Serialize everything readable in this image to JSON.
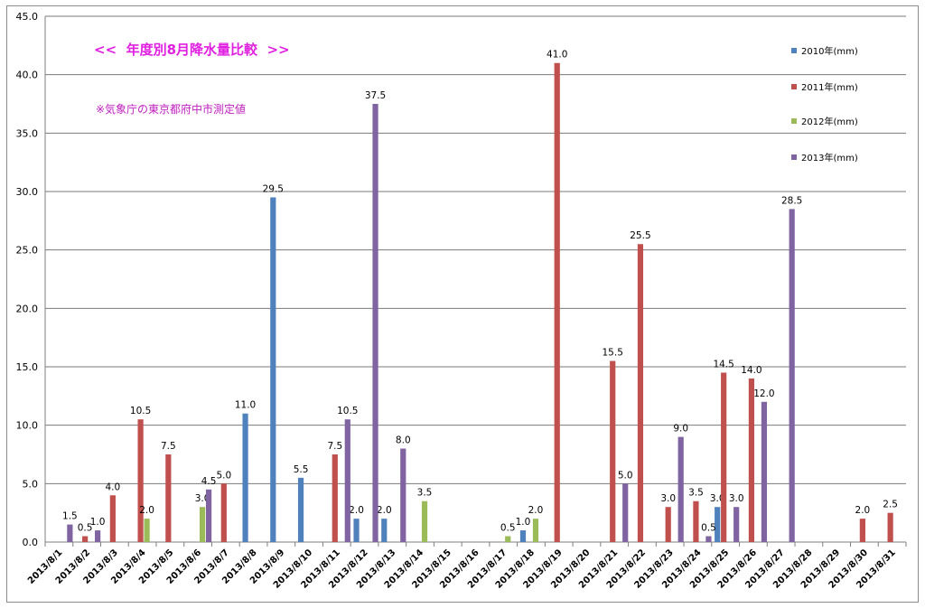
{
  "chart_data": {
    "type": "bar",
    "title": "<<  年度別8月降水量比較  >>",
    "subtitle": "※気象庁の東京都府中市測定値",
    "xlabel": "",
    "ylabel": "",
    "ylim": [
      0,
      45
    ],
    "yticks": [
      "0.0",
      "5.0",
      "10.0",
      "15.0",
      "20.0",
      "25.0",
      "30.0",
      "35.0",
      "40.0",
      "45.0"
    ],
    "grid": true,
    "legend_position": "top-right",
    "categories": [
      "2013/8/1",
      "2013/8/2",
      "2013/8/3",
      "2013/8/4",
      "2013/8/5",
      "2013/8/6",
      "2013/8/7",
      "2013/8/8",
      "2013/8/9",
      "2013/8/10",
      "2013/8/11",
      "2013/8/12",
      "2013/8/13",
      "2013/8/14",
      "2013/8/15",
      "2013/8/16",
      "2013/8/17",
      "2013/8/18",
      "2013/8/19",
      "2013/8/20",
      "2013/8/21",
      "2013/8/22",
      "2013/8/23",
      "2013/8/24",
      "2013/8/25",
      "2013/8/26",
      "2013/8/27",
      "2013/8/28",
      "2013/8/29",
      "2013/8/30",
      "2013/8/31"
    ],
    "series": [
      {
        "name": "2010年(mm)",
        "color": "#4f81bd",
        "values": [
          null,
          null,
          null,
          null,
          null,
          null,
          null,
          11.0,
          29.5,
          5.5,
          null,
          2.0,
          2.0,
          null,
          null,
          null,
          null,
          1.0,
          null,
          null,
          null,
          null,
          null,
          null,
          3.0,
          null,
          null,
          null,
          null,
          null,
          null
        ],
        "labels": [
          null,
          null,
          null,
          null,
          null,
          null,
          null,
          "11.0",
          "29.5",
          "5.5",
          null,
          "2.0",
          "2.0",
          null,
          null,
          null,
          null,
          "1.0",
          null,
          null,
          null,
          null,
          null,
          null,
          "3.0",
          null,
          null,
          null,
          null,
          null,
          null
        ]
      },
      {
        "name": "2011年(mm)",
        "color": "#c0504d",
        "values": [
          null,
          0.5,
          4.0,
          10.5,
          7.5,
          null,
          5.0,
          null,
          null,
          null,
          7.5,
          null,
          null,
          null,
          null,
          null,
          null,
          null,
          41.0,
          null,
          15.5,
          25.5,
          3.0,
          3.5,
          14.5,
          14.0,
          null,
          null,
          null,
          2.0,
          2.5
        ],
        "labels": [
          null,
          "0.5",
          "4.0",
          "10.5",
          "7.5",
          null,
          "5.0",
          null,
          null,
          null,
          "7.5",
          null,
          null,
          null,
          null,
          null,
          null,
          null,
          "41.0",
          null,
          "15.5",
          "25.5",
          "3.0",
          "3.5",
          "14.5",
          "14.0",
          null,
          null,
          null,
          "2.0",
          "2.5"
        ]
      },
      {
        "name": "2012年(mm)",
        "color": "#9bbb59",
        "values": [
          null,
          null,
          null,
          2.0,
          null,
          3.0,
          null,
          null,
          null,
          null,
          null,
          null,
          null,
          3.5,
          null,
          null,
          0.5,
          2.0,
          null,
          null,
          null,
          null,
          null,
          null,
          null,
          null,
          null,
          null,
          null,
          null,
          null
        ],
        "labels": [
          null,
          null,
          null,
          "2.0",
          null,
          "3.0",
          null,
          null,
          null,
          null,
          null,
          null,
          null,
          "3.5",
          null,
          null,
          "0.5",
          "2.0",
          null,
          null,
          null,
          null,
          null,
          null,
          null,
          null,
          null,
          null,
          null,
          null,
          null
        ]
      },
      {
        "name": "2013年(mm)",
        "color": "#8064a2",
        "values": [
          1.5,
          1.0,
          null,
          null,
          null,
          4.5,
          null,
          null,
          null,
          null,
          10.5,
          37.5,
          8.0,
          null,
          null,
          null,
          null,
          null,
          null,
          null,
          5.0,
          null,
          9.0,
          0.5,
          3.0,
          12.0,
          28.5,
          null,
          null,
          null,
          null
        ],
        "labels": [
          "1.5",
          "1.0",
          null,
          null,
          null,
          "4.5",
          null,
          null,
          null,
          null,
          "10.5",
          "37.5",
          "8.0",
          null,
          null,
          null,
          null,
          null,
          null,
          null,
          "5.0",
          null,
          "9.0",
          "0.5",
          "3.0",
          "12.0",
          "28.5",
          null,
          null,
          null,
          null
        ]
      }
    ]
  }
}
